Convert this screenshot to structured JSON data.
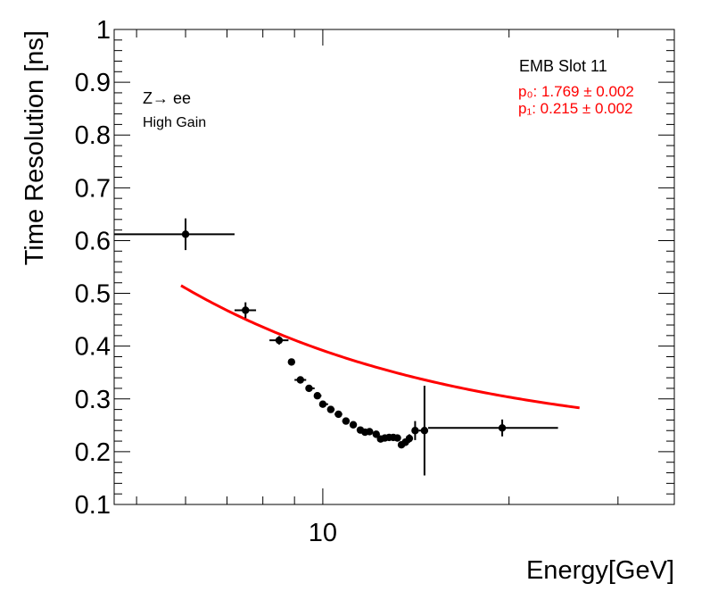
{
  "chart_data": {
    "type": "scatter",
    "title": "",
    "xlabel": "Energy[GeV]",
    "ylabel": "Time Resolution [ns]",
    "x_scale": "log",
    "xlim": [
      4.6,
      37
    ],
    "ylim": [
      0.1,
      1.0
    ],
    "x_ticks": [
      {
        "value": 10,
        "label": "10"
      }
    ],
    "y_ticks": [
      {
        "value": 0.1,
        "label": "0.1"
      },
      {
        "value": 0.2,
        "label": "0.2"
      },
      {
        "value": 0.3,
        "label": "0.3"
      },
      {
        "value": 0.4,
        "label": "0.4"
      },
      {
        "value": 0.5,
        "label": "0.5"
      },
      {
        "value": 0.6,
        "label": "0.6"
      },
      {
        "value": 0.7,
        "label": "0.7"
      },
      {
        "value": 0.8,
        "label": "0.8"
      },
      {
        "value": 0.9,
        "label": "0.9"
      },
      {
        "value": 1.0,
        "label": "1"
      }
    ],
    "grid": false,
    "annotations": {
      "process": "Z→ ee",
      "gain": "High Gain",
      "slot": "EMB Slot 11",
      "p0_line": "p₀: 1.769 ± 0.002",
      "p1_line": "p₁: 0.215 ± 0.002"
    },
    "fit_params": {
      "p0": 1.769,
      "p0_err": 0.002,
      "p1": 0.215,
      "p1_err": 0.002
    },
    "fit_range": [
      5.9,
      26.0
    ],
    "fit_color": "#ff0000",
    "marker_color": "#000000",
    "points": [
      {
        "x": 6.0,
        "y": 0.612,
        "xlo": 4.6,
        "xhi": 7.2,
        "yerr": 0.03
      },
      {
        "x": 7.5,
        "y": 0.468,
        "xlo": 7.2,
        "xhi": 7.8,
        "yerr": 0.015
      },
      {
        "x": 8.5,
        "y": 0.411,
        "xlo": 8.2,
        "xhi": 8.8,
        "yerr": 0.008
      },
      {
        "x": 8.9,
        "y": 0.37,
        "xlo": 8.8,
        "xhi": 9.0,
        "yerr": 0.006
      },
      {
        "x": 9.2,
        "y": 0.336,
        "xlo": 9.0,
        "xhi": 9.4,
        "yerr": 0.005
      },
      {
        "x": 9.5,
        "y": 0.32,
        "xlo": 9.4,
        "xhi": 9.7,
        "yerr": 0.004
      },
      {
        "x": 9.8,
        "y": 0.306,
        "xlo": 9.7,
        "xhi": 9.95,
        "yerr": 0.004
      },
      {
        "x": 10.0,
        "y": 0.29,
        "xlo": 9.95,
        "xhi": 10.2,
        "yerr": 0.004
      },
      {
        "x": 10.3,
        "y": 0.28,
        "xlo": 10.2,
        "xhi": 10.45,
        "yerr": 0.003
      },
      {
        "x": 10.6,
        "y": 0.271,
        "xlo": 10.45,
        "xhi": 10.75,
        "yerr": 0.003
      },
      {
        "x": 10.9,
        "y": 0.258,
        "xlo": 10.75,
        "xhi": 11.05,
        "yerr": 0.003
      },
      {
        "x": 11.2,
        "y": 0.251,
        "xlo": 11.05,
        "xhi": 11.35,
        "yerr": 0.003
      },
      {
        "x": 11.5,
        "y": 0.241,
        "xlo": 11.35,
        "xhi": 11.6,
        "yerr": 0.003
      },
      {
        "x": 11.7,
        "y": 0.237,
        "xlo": 11.6,
        "xhi": 11.8,
        "yerr": 0.003
      },
      {
        "x": 11.9,
        "y": 0.238,
        "xlo": 11.8,
        "xhi": 12.05,
        "yerr": 0.003
      },
      {
        "x": 12.2,
        "y": 0.233,
        "xlo": 12.05,
        "xhi": 12.3,
        "yerr": 0.003
      },
      {
        "x": 12.4,
        "y": 0.224,
        "xlo": 12.3,
        "xhi": 12.5,
        "yerr": 0.004
      },
      {
        "x": 12.6,
        "y": 0.226,
        "xlo": 12.5,
        "xhi": 12.7,
        "yerr": 0.004
      },
      {
        "x": 12.8,
        "y": 0.227,
        "xlo": 12.7,
        "xhi": 12.9,
        "yerr": 0.004
      },
      {
        "x": 13.0,
        "y": 0.227,
        "xlo": 12.9,
        "xhi": 13.1,
        "yerr": 0.004
      },
      {
        "x": 13.2,
        "y": 0.226,
        "xlo": 13.1,
        "xhi": 13.3,
        "yerr": 0.005
      },
      {
        "x": 13.4,
        "y": 0.213,
        "xlo": 13.3,
        "xhi": 13.5,
        "yerr": 0.006
      },
      {
        "x": 13.6,
        "y": 0.218,
        "xlo": 13.5,
        "xhi": 13.7,
        "yerr": 0.007
      },
      {
        "x": 13.8,
        "y": 0.225,
        "xlo": 13.7,
        "xhi": 13.95,
        "yerr": 0.008
      },
      {
        "x": 14.1,
        "y": 0.24,
        "xlo": 13.95,
        "xhi": 14.3,
        "yerr": 0.018
      },
      {
        "x": 14.6,
        "y": 0.24,
        "xlo": 14.3,
        "xhi": 14.8,
        "yerr": 0.085
      },
      {
        "x": 19.5,
        "y": 0.245,
        "xlo": 14.8,
        "xhi": 24.0,
        "yerr": 0.016
      }
    ]
  }
}
